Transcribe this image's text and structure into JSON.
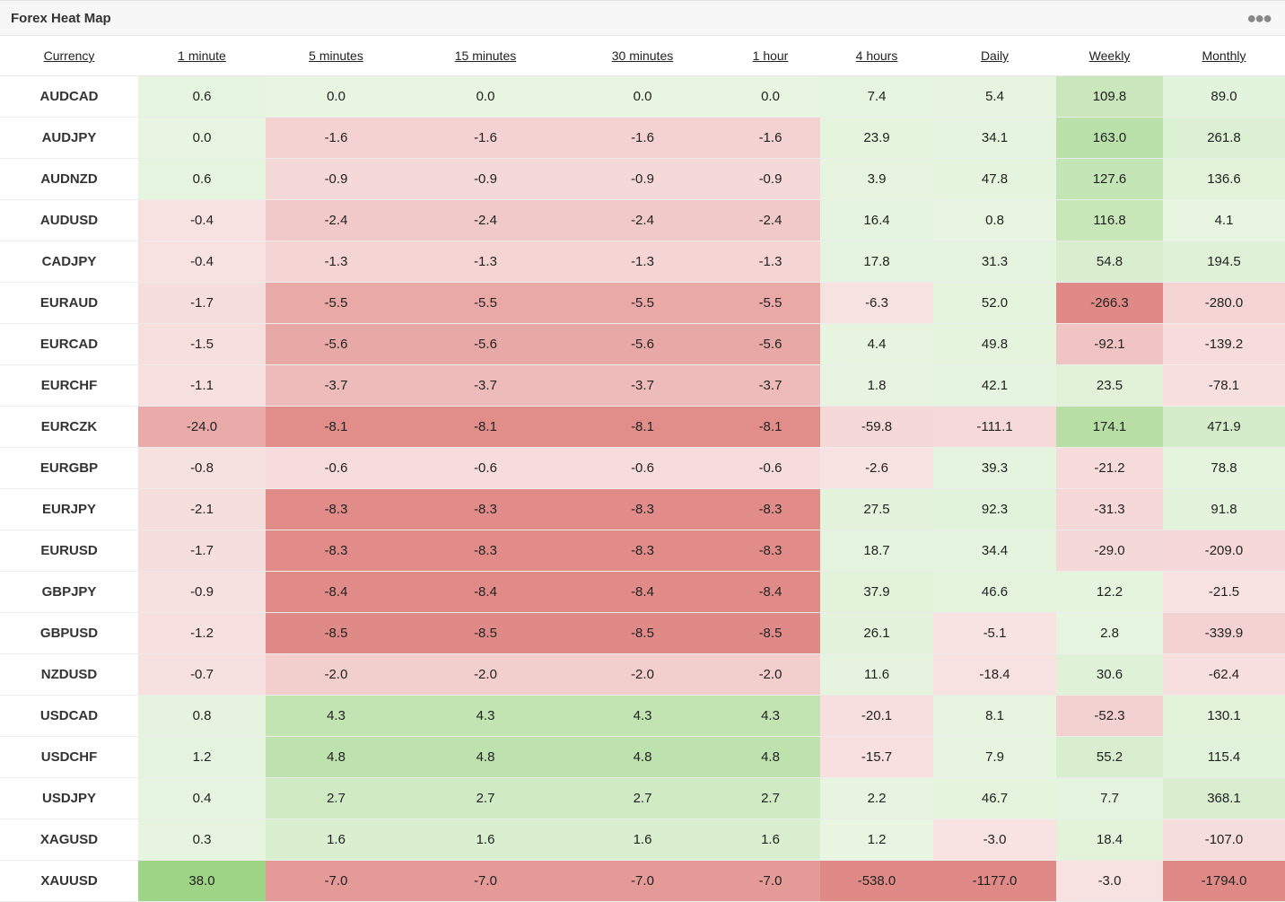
{
  "widget": {
    "title": "Forex Heat Map",
    "menu_icon": "more-horizontal-icon"
  },
  "table": {
    "columns": [
      "Currency",
      "1 minute",
      "5 minutes",
      "15 minutes",
      "30 minutes",
      "1 hour",
      "4 hours",
      "Daily",
      "Weekly",
      "Monthly"
    ],
    "rows": [
      {
        "pair": "AUDCAD",
        "values": [
          "0.6",
          "0.0",
          "0.0",
          "0.0",
          "0.0",
          "7.4",
          "5.4",
          "109.8",
          "89.0"
        ]
      },
      {
        "pair": "AUDJPY",
        "values": [
          "0.0",
          "-1.6",
          "-1.6",
          "-1.6",
          "-1.6",
          "23.9",
          "34.1",
          "163.0",
          "261.8"
        ]
      },
      {
        "pair": "AUDNZD",
        "values": [
          "0.6",
          "-0.9",
          "-0.9",
          "-0.9",
          "-0.9",
          "3.9",
          "47.8",
          "127.6",
          "136.6"
        ]
      },
      {
        "pair": "AUDUSD",
        "values": [
          "-0.4",
          "-2.4",
          "-2.4",
          "-2.4",
          "-2.4",
          "16.4",
          "0.8",
          "116.8",
          "4.1"
        ]
      },
      {
        "pair": "CADJPY",
        "values": [
          "-0.4",
          "-1.3",
          "-1.3",
          "-1.3",
          "-1.3",
          "17.8",
          "31.3",
          "54.8",
          "194.5"
        ]
      },
      {
        "pair": "EURAUD",
        "values": [
          "-1.7",
          "-5.5",
          "-5.5",
          "-5.5",
          "-5.5",
          "-6.3",
          "52.0",
          "-266.3",
          "-280.0"
        ]
      },
      {
        "pair": "EURCAD",
        "values": [
          "-1.5",
          "-5.6",
          "-5.6",
          "-5.6",
          "-5.6",
          "4.4",
          "49.8",
          "-92.1",
          "-139.2"
        ]
      },
      {
        "pair": "EURCHF",
        "values": [
          "-1.1",
          "-3.7",
          "-3.7",
          "-3.7",
          "-3.7",
          "1.8",
          "42.1",
          "23.5",
          "-78.1"
        ]
      },
      {
        "pair": "EURCZK",
        "values": [
          "-24.0",
          "-8.1",
          "-8.1",
          "-8.1",
          "-8.1",
          "-59.8",
          "-111.1",
          "174.1",
          "471.9"
        ]
      },
      {
        "pair": "EURGBP",
        "values": [
          "-0.8",
          "-0.6",
          "-0.6",
          "-0.6",
          "-0.6",
          "-2.6",
          "39.3",
          "-21.2",
          "78.8"
        ]
      },
      {
        "pair": "EURJPY",
        "values": [
          "-2.1",
          "-8.3",
          "-8.3",
          "-8.3",
          "-8.3",
          "27.5",
          "92.3",
          "-31.3",
          "91.8"
        ]
      },
      {
        "pair": "EURUSD",
        "values": [
          "-1.7",
          "-8.3",
          "-8.3",
          "-8.3",
          "-8.3",
          "18.7",
          "34.4",
          "-29.0",
          "-209.0"
        ]
      },
      {
        "pair": "GBPJPY",
        "values": [
          "-0.9",
          "-8.4",
          "-8.4",
          "-8.4",
          "-8.4",
          "37.9",
          "46.6",
          "12.2",
          "-21.5"
        ]
      },
      {
        "pair": "GBPUSD",
        "values": [
          "-1.2",
          "-8.5",
          "-8.5",
          "-8.5",
          "-8.5",
          "26.1",
          "-5.1",
          "2.8",
          "-339.9"
        ]
      },
      {
        "pair": "NZDUSD",
        "values": [
          "-0.7",
          "-2.0",
          "-2.0",
          "-2.0",
          "-2.0",
          "11.6",
          "-18.4",
          "30.6",
          "-62.4"
        ]
      },
      {
        "pair": "USDCAD",
        "values": [
          "0.8",
          "4.3",
          "4.3",
          "4.3",
          "4.3",
          "-20.1",
          "8.1",
          "-52.3",
          "130.1"
        ]
      },
      {
        "pair": "USDCHF",
        "values": [
          "1.2",
          "4.8",
          "4.8",
          "4.8",
          "4.8",
          "-15.7",
          "7.9",
          "55.2",
          "115.4"
        ]
      },
      {
        "pair": "USDJPY",
        "values": [
          "0.4",
          "2.7",
          "2.7",
          "2.7",
          "2.7",
          "2.2",
          "46.7",
          "7.7",
          "368.1"
        ]
      },
      {
        "pair": "XAGUSD",
        "values": [
          "0.3",
          "1.6",
          "1.6",
          "1.6",
          "1.6",
          "1.2",
          "-3.0",
          "18.4",
          "-107.0"
        ]
      },
      {
        "pair": "XAUUSD",
        "values": [
          "38.0",
          "-7.0",
          "-7.0",
          "-7.0",
          "-7.0",
          "-538.0",
          "-1177.0",
          "-3.0",
          "-1794.0"
        ]
      }
    ]
  },
  "colors": {
    "positive_strong": "#9ed485",
    "negative_strong": "#e08a87",
    "neutral": "#ffffff"
  }
}
